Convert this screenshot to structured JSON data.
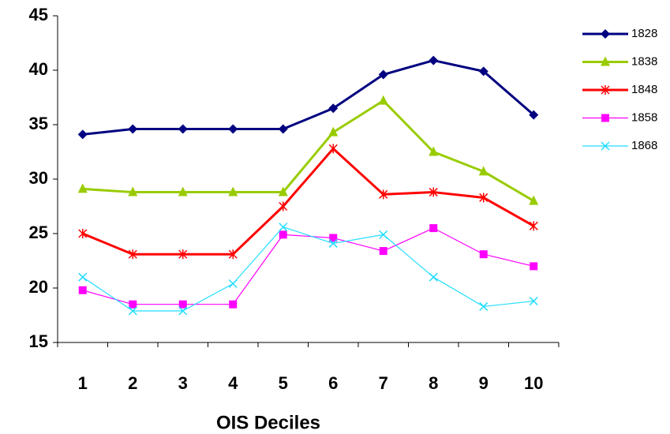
{
  "chart_data": {
    "type": "line",
    "x_label": "OIS Deciles",
    "categories": [
      "1",
      "2",
      "3",
      "4",
      "5",
      "6",
      "7",
      "8",
      "9",
      "10"
    ],
    "ylim": [
      15,
      45
    ],
    "yticks": [
      15,
      20,
      25,
      30,
      35,
      40,
      45
    ],
    "grid": false,
    "legend": "right",
    "series": [
      {
        "name": "1828",
        "color": "#000080",
        "marker": "diamond",
        "line_width": 3,
        "values": [
          34.1,
          34.6,
          34.6,
          34.6,
          34.6,
          36.5,
          39.6,
          40.9,
          39.9,
          35.9
        ]
      },
      {
        "name": "1838",
        "color": "#99cc00",
        "marker": "triangle",
        "line_width": 3,
        "values": [
          29.1,
          28.8,
          28.8,
          28.8,
          28.8,
          34.3,
          37.2,
          32.5,
          30.7,
          28.0
        ]
      },
      {
        "name": "1848",
        "color": "#ff0000",
        "marker": "star",
        "line_width": 3,
        "values": [
          25.0,
          23.1,
          23.1,
          23.1,
          27.5,
          32.8,
          28.6,
          28.8,
          28.3,
          25.7
        ]
      },
      {
        "name": "1858",
        "color": "#ff00ff",
        "marker": "square",
        "line_width": 1.2,
        "values": [
          19.8,
          18.5,
          18.5,
          18.5,
          24.9,
          24.6,
          23.4,
          25.5,
          23.1,
          22.0
        ]
      },
      {
        "name": "1868",
        "color": "#22ddff",
        "marker": "x",
        "line_width": 1.2,
        "values": [
          21.0,
          17.9,
          17.9,
          20.4,
          25.6,
          24.1,
          24.9,
          21.0,
          18.3,
          18.8
        ]
      }
    ]
  }
}
